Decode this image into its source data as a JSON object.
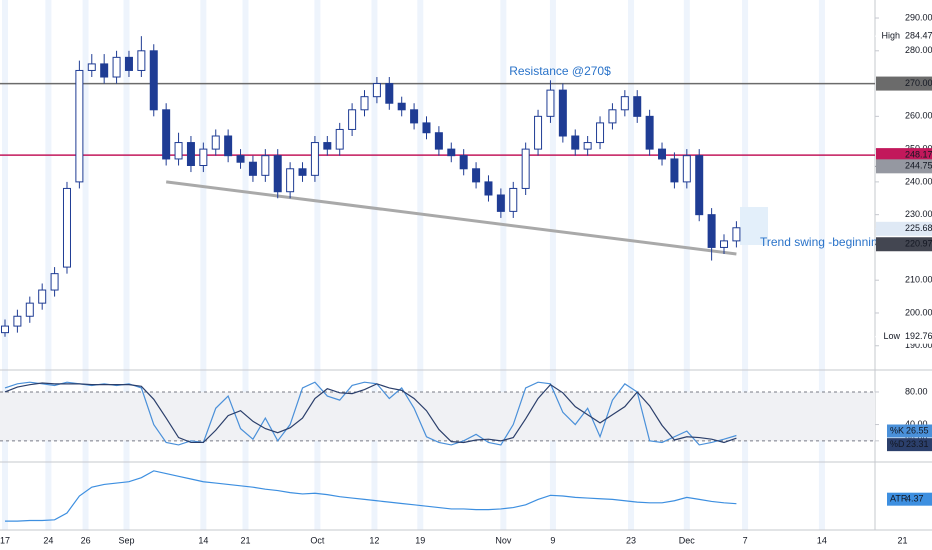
{
  "chart_data": [
    {
      "type": "candlestick",
      "open": [
        194,
        196,
        199,
        203,
        207,
        214,
        240,
        274,
        276,
        272,
        278,
        274,
        280,
        262,
        247,
        252,
        245,
        250,
        254,
        248,
        246,
        242,
        248,
        237,
        244,
        242,
        252,
        250,
        256,
        262,
        266,
        270,
        264,
        262,
        258,
        255,
        250,
        248,
        244,
        240,
        236,
        231,
        238,
        250,
        260,
        268,
        254,
        250,
        252,
        258,
        262,
        266,
        260,
        250,
        247,
        240,
        248,
        230,
        220,
        222
      ],
      "high": [
        198,
        201,
        205,
        209,
        214,
        240,
        277,
        279,
        279,
        280,
        280,
        284.47,
        282,
        264,
        255,
        254,
        252,
        256,
        256,
        250,
        248,
        250,
        250,
        246,
        246,
        254,
        254,
        258,
        264,
        268,
        272,
        272,
        266,
        264,
        260,
        257,
        252,
        250,
        246,
        242,
        238,
        240,
        252,
        262,
        271,
        270,
        256,
        254,
        260,
        264,
        268,
        268,
        262,
        252,
        249,
        250,
        250,
        232,
        224,
        228
      ],
      "low": [
        192.76,
        194,
        197,
        201,
        205,
        212,
        238,
        272,
        270,
        270,
        272,
        272,
        260,
        245,
        245,
        243,
        243,
        248,
        246,
        244,
        240,
        240,
        235,
        235,
        240,
        240,
        248,
        248,
        254,
        260,
        264,
        262,
        260,
        256,
        253,
        248,
        246,
        242,
        238,
        234,
        229,
        229,
        236,
        248,
        258,
        252,
        248,
        248,
        250,
        256,
        260,
        258,
        248,
        245,
        238,
        238,
        228,
        216,
        218,
        220
      ],
      "close": [
        196,
        199,
        203,
        207,
        212,
        238,
        274,
        276,
        272,
        278,
        274,
        280,
        262,
        247,
        252,
        245,
        250,
        254,
        248,
        246,
        242,
        248,
        237,
        244,
        242,
        252,
        250,
        256,
        262,
        266,
        270,
        264,
        262,
        258,
        255,
        250,
        248,
        244,
        240,
        236,
        231,
        238,
        250,
        260,
        268,
        254,
        250,
        252,
        258,
        262,
        266,
        260,
        250,
        247,
        240,
        248,
        230,
        220,
        222,
        226
      ],
      "up_color": "#ffffff",
      "down_color": "#1f3c94",
      "xlim": [
        0,
        72.6
      ],
      "xticks": [
        {
          "value": 0,
          "label": "17"
        },
        {
          "value": 3.5,
          "label": "24"
        },
        {
          "value": 6.5,
          "label": "26"
        },
        {
          "value": 9.8,
          "label": "Sep"
        },
        {
          "value": 16,
          "label": "14"
        },
        {
          "value": 19.4,
          "label": "21"
        },
        {
          "value": 25.2,
          "label": "Oct"
        },
        {
          "value": 29.8,
          "label": "12"
        },
        {
          "value": 33.5,
          "label": "19"
        },
        {
          "value": 40.2,
          "label": "Nov"
        },
        {
          "value": 44.2,
          "label": "9"
        },
        {
          "value": 50.5,
          "label": "23"
        },
        {
          "value": 55,
          "label": "Dec"
        },
        {
          "value": 59.7,
          "label": "7"
        },
        {
          "value": 65.9,
          "label": "14"
        },
        {
          "value": 72.4,
          "label": "21"
        }
      ],
      "ylim": [
        182.6,
        295.5
      ],
      "yticks": [
        {
          "value": 290,
          "label": "290.00"
        },
        {
          "value": 280,
          "label": "280.00"
        },
        {
          "value": 260,
          "label": "260.00"
        },
        {
          "value": 250,
          "label": "250.00"
        },
        {
          "value": 240,
          "label": "240.00"
        },
        {
          "value": 230,
          "label": "230.00"
        },
        {
          "value": 210,
          "label": "210.00"
        },
        {
          "value": 200,
          "label": "200.00"
        },
        {
          "value": 190,
          "label": "190.00"
        }
      ],
      "levels": [
        {
          "value": 270,
          "label": "270.00",
          "color": "#6b6b6b"
        },
        {
          "value": 248.17,
          "label": "248.17",
          "color": "#c2185b"
        }
      ],
      "price_tags": [
        {
          "name": "High",
          "value": 284.47,
          "label": "284.47",
          "color": "#ffffff"
        },
        {
          "value": 244.75,
          "label": "244.75",
          "color": "#9598a1"
        },
        {
          "value": 225.68,
          "label": "225.68",
          "color": "#dfe9f5"
        },
        {
          "value": 220.97,
          "label": "220.97",
          "color": "#434651"
        },
        {
          "name": "Low",
          "value": 192.76,
          "label": "192.76",
          "color": "#ffffff"
        }
      ],
      "trend_line": {
        "x": [
          13,
          59
        ],
        "y": [
          240,
          218
        ]
      },
      "annotations": [
        "Resistance @270$",
        "Trend swing -beginning of the rise"
      ]
    },
    {
      "type": "line",
      "ylim": [
        -6,
        107
      ],
      "yticks": [
        {
          "value": 80,
          "label": "80.00"
        },
        {
          "value": 40,
          "label": "40.00"
        },
        {
          "value": 20,
          "label": "20.00"
        }
      ],
      "band": [
        20,
        80
      ],
      "series": [
        {
          "name": "%K",
          "color": "#4a90d9",
          "values": [
            85,
            90,
            92,
            90,
            88,
            92,
            90,
            88,
            90,
            88,
            90,
            85,
            40,
            18,
            15,
            20,
            18,
            60,
            75,
            35,
            22,
            48,
            20,
            40,
            85,
            92,
            75,
            70,
            88,
            92,
            90,
            72,
            85,
            60,
            25,
            18,
            15,
            20,
            28,
            18,
            15,
            40,
            85,
            92,
            90,
            55,
            40,
            60,
            25,
            70,
            90,
            80,
            20,
            18,
            25,
            32,
            15,
            18,
            22,
            26.55
          ]
        },
        {
          "name": "%D",
          "color": "#2b3f6b",
          "values": [
            80,
            86,
            89,
            91,
            90,
            90,
            90,
            89,
            89,
            89,
            89,
            87,
            71,
            48,
            24,
            18,
            18,
            33,
            51,
            57,
            44,
            35,
            30,
            36,
            48,
            72,
            84,
            79,
            78,
            83,
            90,
            85,
            82,
            72,
            57,
            34,
            19,
            18,
            21,
            22,
            20,
            24,
            47,
            72,
            89,
            79,
            62,
            52,
            42,
            52,
            62,
            80,
            63,
            39,
            21,
            25,
            24,
            22,
            18,
            23.31
          ]
        }
      ]
    },
    {
      "type": "line",
      "ylim": [
        0.5,
        10.5
      ],
      "series": [
        {
          "name": "ATR",
          "color": "#3d8fe0",
          "values": [
            1.8,
            1.8,
            1.9,
            1.9,
            2,
            3,
            5.5,
            6.8,
            7.2,
            7.4,
            7.6,
            8.2,
            9.2,
            8.8,
            8.4,
            8,
            7.6,
            7.4,
            7.2,
            7,
            6.8,
            6.5,
            6.3,
            6,
            5.8,
            5.9,
            5.7,
            5.4,
            5.2,
            5,
            4.8,
            4.6,
            4.4,
            4.2,
            4,
            3.8,
            3.6,
            3.6,
            3.5,
            3.5,
            3.6,
            3.8,
            4.2,
            5,
            5.6,
            5.5,
            5.3,
            5.2,
            5.1,
            5,
            4.8,
            4.6,
            4.5,
            4.5,
            4.8,
            5.3,
            5,
            4.7,
            4.5,
            4.37
          ]
        }
      ]
    }
  ]
}
